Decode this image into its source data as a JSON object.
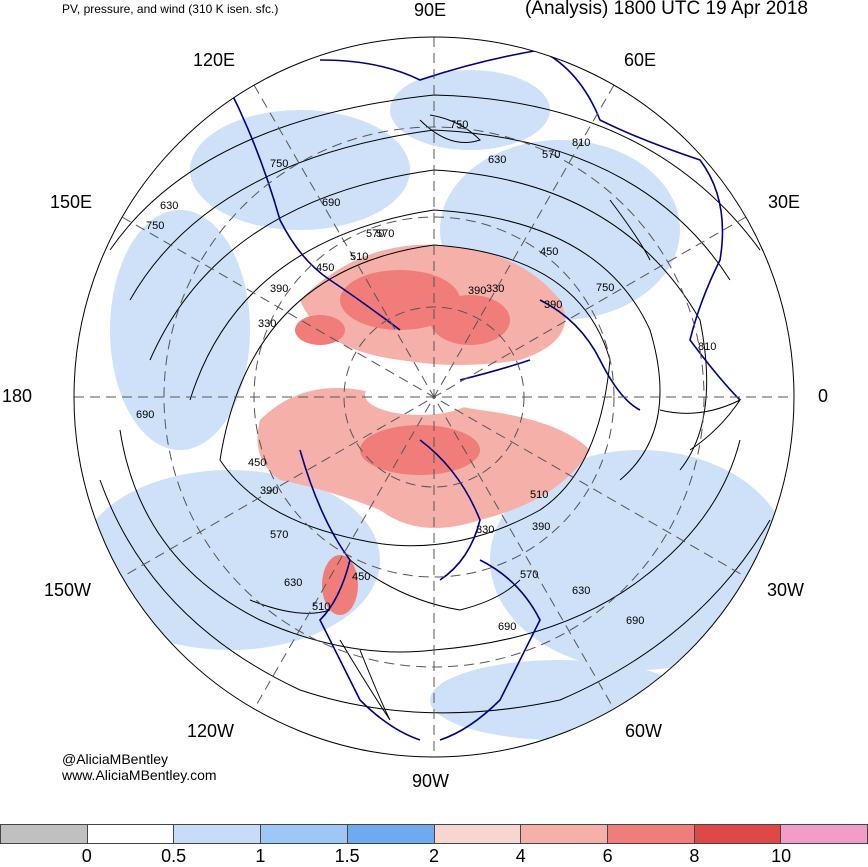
{
  "header": {
    "subtitle": "PV, pressure, and wind (310 K isen. sfc.)",
    "title": "(Analysis) 1800 UTC 19 Apr 2018"
  },
  "credits": {
    "handle": "@AliciaMBentley",
    "website": "www.AliciaMBentley.com"
  },
  "longitude_labels": {
    "lon_90E": "90E",
    "lon_60E": "60E",
    "lon_120E": "120E",
    "lon_150E": "150E",
    "lon_30E": "30E",
    "lon_180": "180",
    "lon_0": "0",
    "lon_150W": "150W",
    "lon_30W": "30W",
    "lon_120W": "120W",
    "lon_60W": "60W",
    "lon_90W": "90W"
  },
  "contour_labels": [
    "750",
    "630",
    "570",
    "810",
    "690",
    "570",
    "510",
    "450",
    "330",
    "390",
    "390",
    "750",
    "810",
    "450",
    "390",
    "330",
    "690",
    "450",
    "390",
    "570",
    "630",
    "510",
    "450",
    "510",
    "570",
    "630",
    "690",
    "690",
    "630",
    "570",
    "390",
    "750",
    "750",
    "330"
  ],
  "colorbar": {
    "colors": [
      "#c0c0c0",
      "#ffffff",
      "#c6dcf7",
      "#9ec7f4",
      "#6fa9f0",
      "#f7d6d2",
      "#f6b0aa",
      "#f07d79",
      "#e04848",
      "#f29cc8"
    ],
    "ticks": [
      "0",
      "0.5",
      "1",
      "1.5",
      "2",
      "4",
      "6",
      "8",
      "10"
    ]
  },
  "map_colors": {
    "coast": "#000080",
    "contour": "#000000",
    "grid": "#555555",
    "pv_low": "#c6dcf7",
    "pv_high": "#f07d79"
  }
}
